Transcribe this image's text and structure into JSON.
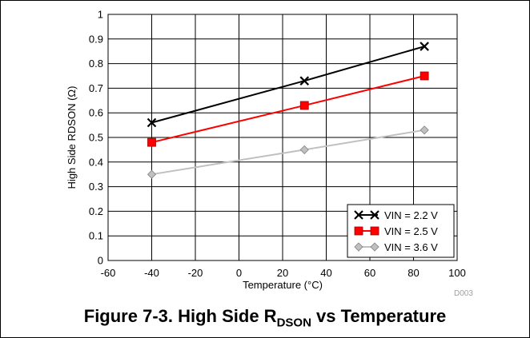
{
  "chart_data": {
    "type": "line",
    "xlabel": "Temperature (°C)",
    "ylabel": "High Side RDSON (Ω)",
    "xlim": [
      -60,
      100
    ],
    "ylim": [
      0,
      1
    ],
    "xticks": [
      "-60",
      "-40",
      "-20",
      "0",
      "20",
      "40",
      "60",
      "80",
      "100"
    ],
    "yticks": [
      "0",
      "0.1",
      "0.2",
      "0.3",
      "0.4",
      "0.5",
      "0.6",
      "0.7",
      "0.8",
      "0.9",
      "1"
    ],
    "grid": true,
    "legend_position": "bottom-right",
    "series": [
      {
        "name": "VIN = 2.2 V",
        "color": "#000000",
        "marker": "x",
        "x": [
          -40,
          30,
          85
        ],
        "y": [
          0.56,
          0.73,
          0.87
        ]
      },
      {
        "name": "VIN = 2.5 V",
        "color": "#ff0000",
        "marker": "square",
        "x": [
          -40,
          30,
          85
        ],
        "y": [
          0.48,
          0.63,
          0.75
        ]
      },
      {
        "name": "VIN = 3.6 V",
        "color": "#c0c0c0",
        "marker": "diamond",
        "x": [
          -40,
          30,
          85
        ],
        "y": [
          0.35,
          0.45,
          0.53
        ]
      }
    ]
  },
  "figure": {
    "id_label": "D003",
    "caption_prefix": "Figure 7-3. High Side R",
    "caption_sub": "DSON",
    "caption_suffix": " vs Temperature"
  }
}
